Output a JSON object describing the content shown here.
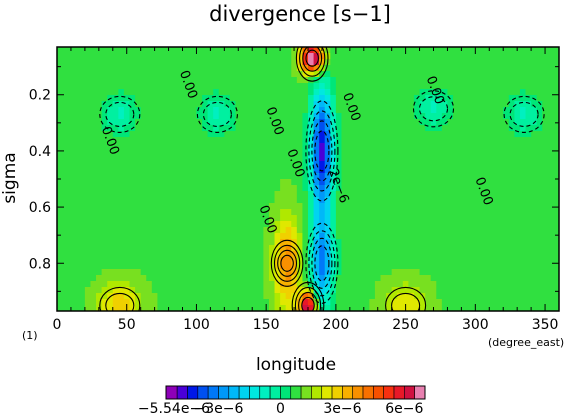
{
  "chart_data": {
    "type": "heatmap",
    "title": "divergence [s−1]",
    "xlabel": "longitude",
    "ylabel": "sigma",
    "x_unit": "(degree_east)",
    "panel_number": "(1)",
    "xlim": [
      0,
      360
    ],
    "ylim": [
      0.97,
      0.03
    ],
    "x_ticks": [
      0,
      50,
      100,
      150,
      200,
      250,
      300,
      350
    ],
    "y_ticks": [
      0.2,
      0.4,
      0.6,
      0.8
    ],
    "colorbar": {
      "min": -5.54e-06,
      "max": 7e-06,
      "levels": [
        -5.54e-06,
        -5e-06,
        -4.5e-06,
        -4e-06,
        -3.5e-06,
        -3e-06,
        -2.5e-06,
        -2e-06,
        -1.5e-06,
        -1e-06,
        -5e-07,
        0,
        5e-07,
        1e-06,
        1.5e-06,
        2e-06,
        2.5e-06,
        3e-06,
        3.5e-06,
        4e-06,
        4.5e-06,
        5e-06,
        5.5e-06,
        6e-06,
        6.5e-06,
        7e-06
      ],
      "colors": [
        "#8e00b8",
        "#4a00d8",
        "#0018e8",
        "#0050f0",
        "#0078f8",
        "#0098f8",
        "#00b8f8",
        "#00d4f0",
        "#00e8e0",
        "#00f0c0",
        "#00f0a0",
        "#00e678",
        "#30e040",
        "#78e020",
        "#b0e800",
        "#e0e800",
        "#f0d000",
        "#f8b000",
        "#f89000",
        "#f87000",
        "#f85000",
        "#f83010",
        "#e81828",
        "#d01040",
        "#e880b0"
      ],
      "tick_labels": [
        "−5.54e−6",
        "−3e−6",
        "0",
        "3e−6",
        "6e−6"
      ]
    },
    "contour_labels": [
      "0.00",
      "0.00",
      "0.00",
      "0.00",
      "0.00",
      "0.00",
      "0.00",
      "0.00",
      "2e−6"
    ],
    "features": [
      {
        "kind": "divergence_max",
        "lon": 183,
        "sigma": 0.07,
        "value": 7e-06
      },
      {
        "kind": "convergence_min",
        "lon": 190,
        "sigma": 0.4,
        "value": -5.5e-06
      },
      {
        "kind": "convergence_min",
        "lon": 190,
        "sigma": 0.8,
        "value": -4e-06
      },
      {
        "kind": "divergence_max",
        "lon": 180,
        "sigma": 0.95,
        "value": 6e-06
      },
      {
        "kind": "divergence_max",
        "lon": 165,
        "sigma": 0.8,
        "value": 3e-06
      },
      {
        "kind": "convergence_min",
        "lon": 45,
        "sigma": 0.27,
        "value": -1.5e-06
      },
      {
        "kind": "convergence_min",
        "lon": 115,
        "sigma": 0.27,
        "value": -1.5e-06
      },
      {
        "kind": "convergence_min",
        "lon": 270,
        "sigma": 0.25,
        "value": -1.5e-06
      },
      {
        "kind": "convergence_min",
        "lon": 335,
        "sigma": 0.27,
        "value": -1.5e-06
      },
      {
        "kind": "divergence_max",
        "lon": 45,
        "sigma": 0.95,
        "value": 2e-06
      },
      {
        "kind": "divergence_max",
        "lon": 250,
        "sigma": 0.95,
        "value": 1.5e-06
      }
    ]
  }
}
